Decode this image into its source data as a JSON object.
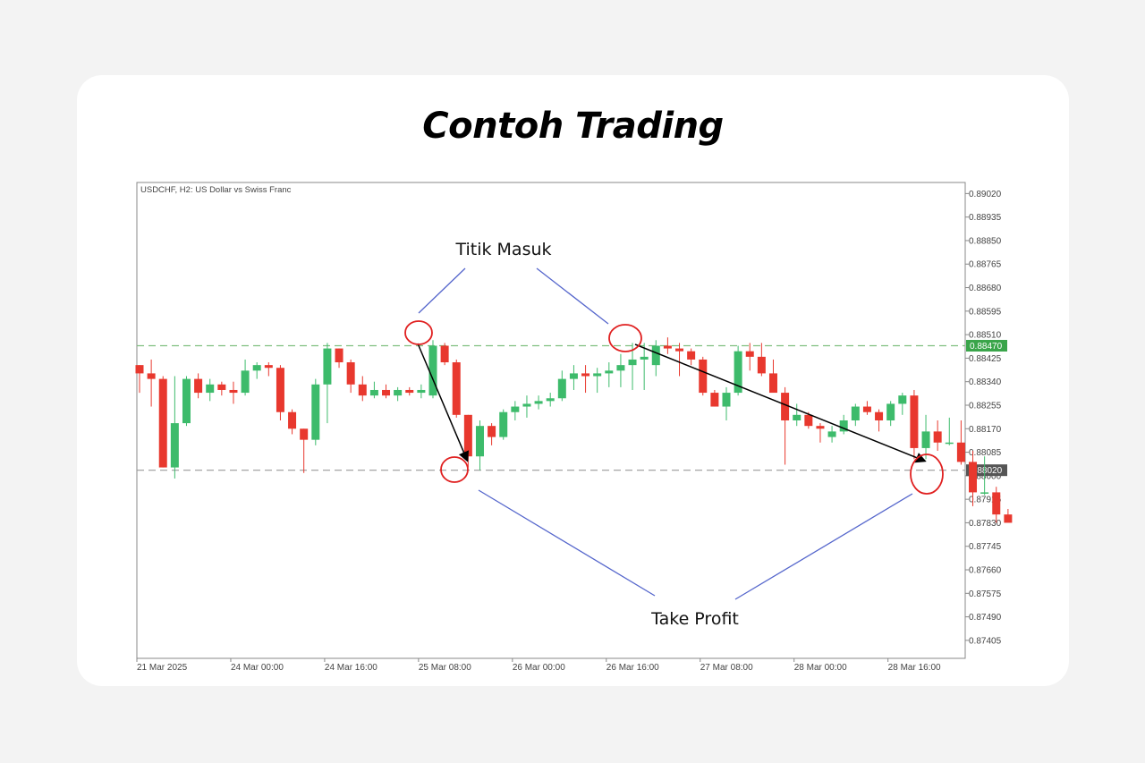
{
  "page": {
    "title": "Contoh Trading"
  },
  "chart_data": {
    "type": "candlestick",
    "symbol_label": "USDCHF, H2:  US Dollar vs Swiss Franc",
    "ylim": [
      0.8734,
      0.8906
    ],
    "y_ticks": [
      "0.89020",
      "0.88935",
      "0.88850",
      "0.88765",
      "0.88680",
      "0.88595",
      "0.88510",
      "0.88425",
      "0.88340",
      "0.88255",
      "0.88170",
      "0.88085",
      "0.88000",
      "0.87915",
      "0.87830",
      "0.87745",
      "0.87660",
      "0.87575",
      "0.87490",
      "0.87405"
    ],
    "x_ticks": [
      {
        "label": "21 Mar 2025",
        "index": 0
      },
      {
        "label": "24 Mar 00:00",
        "index": 8
      },
      {
        "label": "24 Mar 16:00",
        "index": 16
      },
      {
        "label": "25 Mar 08:00",
        "index": 24
      },
      {
        "label": "26 Mar 00:00",
        "index": 32
      },
      {
        "label": "26 Mar 16:00",
        "index": 40
      },
      {
        "label": "27 Mar 08:00",
        "index": 48
      },
      {
        "label": "28 Mar 00:00",
        "index": 56
      },
      {
        "label": "28 Mar 16:00",
        "index": 64
      }
    ],
    "candles": [
      [
        0.884,
        0.884,
        0.883,
        0.8837
      ],
      [
        0.8837,
        0.8842,
        0.8825,
        0.8835
      ],
      [
        0.8835,
        0.8836,
        0.8803,
        0.8803
      ],
      [
        0.8803,
        0.8836,
        0.8799,
        0.8819
      ],
      [
        0.8819,
        0.8836,
        0.8818,
        0.8835
      ],
      [
        0.8835,
        0.8837,
        0.8828,
        0.883
      ],
      [
        0.883,
        0.8835,
        0.8827,
        0.8833
      ],
      [
        0.8833,
        0.8834,
        0.8829,
        0.8831
      ],
      [
        0.8831,
        0.8834,
        0.8826,
        0.883
      ],
      [
        0.883,
        0.8842,
        0.8829,
        0.8838
      ],
      [
        0.8838,
        0.8841,
        0.8835,
        0.884
      ],
      [
        0.884,
        0.8841,
        0.8836,
        0.8839
      ],
      [
        0.8839,
        0.884,
        0.882,
        0.8823
      ],
      [
        0.8823,
        0.8824,
        0.8815,
        0.8817
      ],
      [
        0.8817,
        0.8817,
        0.8801,
        0.8813
      ],
      [
        0.8813,
        0.8835,
        0.8811,
        0.8833
      ],
      [
        0.8833,
        0.8848,
        0.8819,
        0.8846
      ],
      [
        0.8846,
        0.8846,
        0.8839,
        0.8841
      ],
      [
        0.8841,
        0.8842,
        0.883,
        0.8833
      ],
      [
        0.8833,
        0.8836,
        0.8827,
        0.8829
      ],
      [
        0.8829,
        0.8834,
        0.8828,
        0.8831
      ],
      [
        0.8831,
        0.8833,
        0.8828,
        0.8829
      ],
      [
        0.8829,
        0.8832,
        0.8827,
        0.8831
      ],
      [
        0.8831,
        0.8832,
        0.8829,
        0.883
      ],
      [
        0.883,
        0.8833,
        0.8828,
        0.8831
      ],
      [
        0.8829,
        0.8849,
        0.8828,
        0.8847
      ],
      [
        0.8847,
        0.8848,
        0.884,
        0.8841
      ],
      [
        0.8841,
        0.8842,
        0.8821,
        0.8822
      ],
      [
        0.8822,
        0.8822,
        0.8803,
        0.8807
      ],
      [
        0.8807,
        0.882,
        0.8802,
        0.8818
      ],
      [
        0.8818,
        0.8819,
        0.8811,
        0.8814
      ],
      [
        0.8814,
        0.8824,
        0.8813,
        0.8823
      ],
      [
        0.8823,
        0.8827,
        0.882,
        0.8825
      ],
      [
        0.8825,
        0.8829,
        0.8821,
        0.8826
      ],
      [
        0.8826,
        0.8829,
        0.8824,
        0.8827
      ],
      [
        0.8827,
        0.883,
        0.8825,
        0.8828
      ],
      [
        0.8828,
        0.8838,
        0.8827,
        0.8835
      ],
      [
        0.8835,
        0.884,
        0.8831,
        0.8837
      ],
      [
        0.8837,
        0.884,
        0.883,
        0.8836
      ],
      [
        0.8836,
        0.8839,
        0.883,
        0.8837
      ],
      [
        0.8837,
        0.8841,
        0.8832,
        0.8838
      ],
      [
        0.8838,
        0.8844,
        0.8832,
        0.884
      ],
      [
        0.884,
        0.8848,
        0.8831,
        0.8842
      ],
      [
        0.8842,
        0.8848,
        0.8831,
        0.8843
      ],
      [
        0.884,
        0.8849,
        0.8836,
        0.8847
      ],
      [
        0.8847,
        0.885,
        0.8844,
        0.8846
      ],
      [
        0.8846,
        0.8848,
        0.8836,
        0.8845
      ],
      [
        0.8845,
        0.8846,
        0.884,
        0.8842
      ],
      [
        0.8842,
        0.8843,
        0.8829,
        0.883
      ],
      [
        0.883,
        0.8831,
        0.8825,
        0.8825
      ],
      [
        0.8825,
        0.8832,
        0.882,
        0.883
      ],
      [
        0.883,
        0.8847,
        0.8829,
        0.8845
      ],
      [
        0.8845,
        0.8848,
        0.8838,
        0.8843
      ],
      [
        0.8843,
        0.8848,
        0.8836,
        0.8837
      ],
      [
        0.8837,
        0.8842,
        0.8831,
        0.883
      ],
      [
        0.883,
        0.8832,
        0.8804,
        0.882
      ],
      [
        0.882,
        0.8826,
        0.8818,
        0.8822
      ],
      [
        0.8822,
        0.8823,
        0.8817,
        0.8818
      ],
      [
        0.8818,
        0.8819,
        0.8812,
        0.8817
      ],
      [
        0.8814,
        0.8818,
        0.8812,
        0.8816
      ],
      [
        0.8816,
        0.8822,
        0.8815,
        0.882
      ],
      [
        0.882,
        0.8826,
        0.8818,
        0.8825
      ],
      [
        0.8825,
        0.8827,
        0.8822,
        0.8823
      ],
      [
        0.8823,
        0.8824,
        0.8816,
        0.882
      ],
      [
        0.882,
        0.8827,
        0.8818,
        0.8826
      ],
      [
        0.8826,
        0.883,
        0.8822,
        0.8829
      ],
      [
        0.8829,
        0.8831,
        0.8806,
        0.881
      ],
      [
        0.881,
        0.8822,
        0.8806,
        0.8816
      ],
      [
        0.8816,
        0.882,
        0.8809,
        0.8812
      ],
      [
        0.8812,
        0.8821,
        0.8811,
        0.8812
      ],
      [
        0.8812,
        0.882,
        0.8804,
        0.8805
      ],
      [
        0.8805,
        0.8809,
        0.8789,
        0.8794
      ],
      [
        0.8794,
        0.8807,
        0.8793,
        0.8794
      ],
      [
        0.8794,
        0.8796,
        0.8783,
        0.8786
      ],
      [
        0.8786,
        0.8788,
        0.8784,
        0.8783
      ]
    ],
    "levels": [
      {
        "value": 0.8847,
        "label": "0.88470",
        "color": "#3aa54a"
      },
      {
        "value": 0.8802,
        "label": "0.88020",
        "color": "#555555"
      }
    ],
    "colors": {
      "bull": "#3dbb6b",
      "bear": "#e8382e",
      "annotation": "#5566cc",
      "circle": "#e02020"
    },
    "annotations": [
      {
        "label": "Titik Masuk"
      },
      {
        "label": "Take Profit"
      }
    ]
  }
}
